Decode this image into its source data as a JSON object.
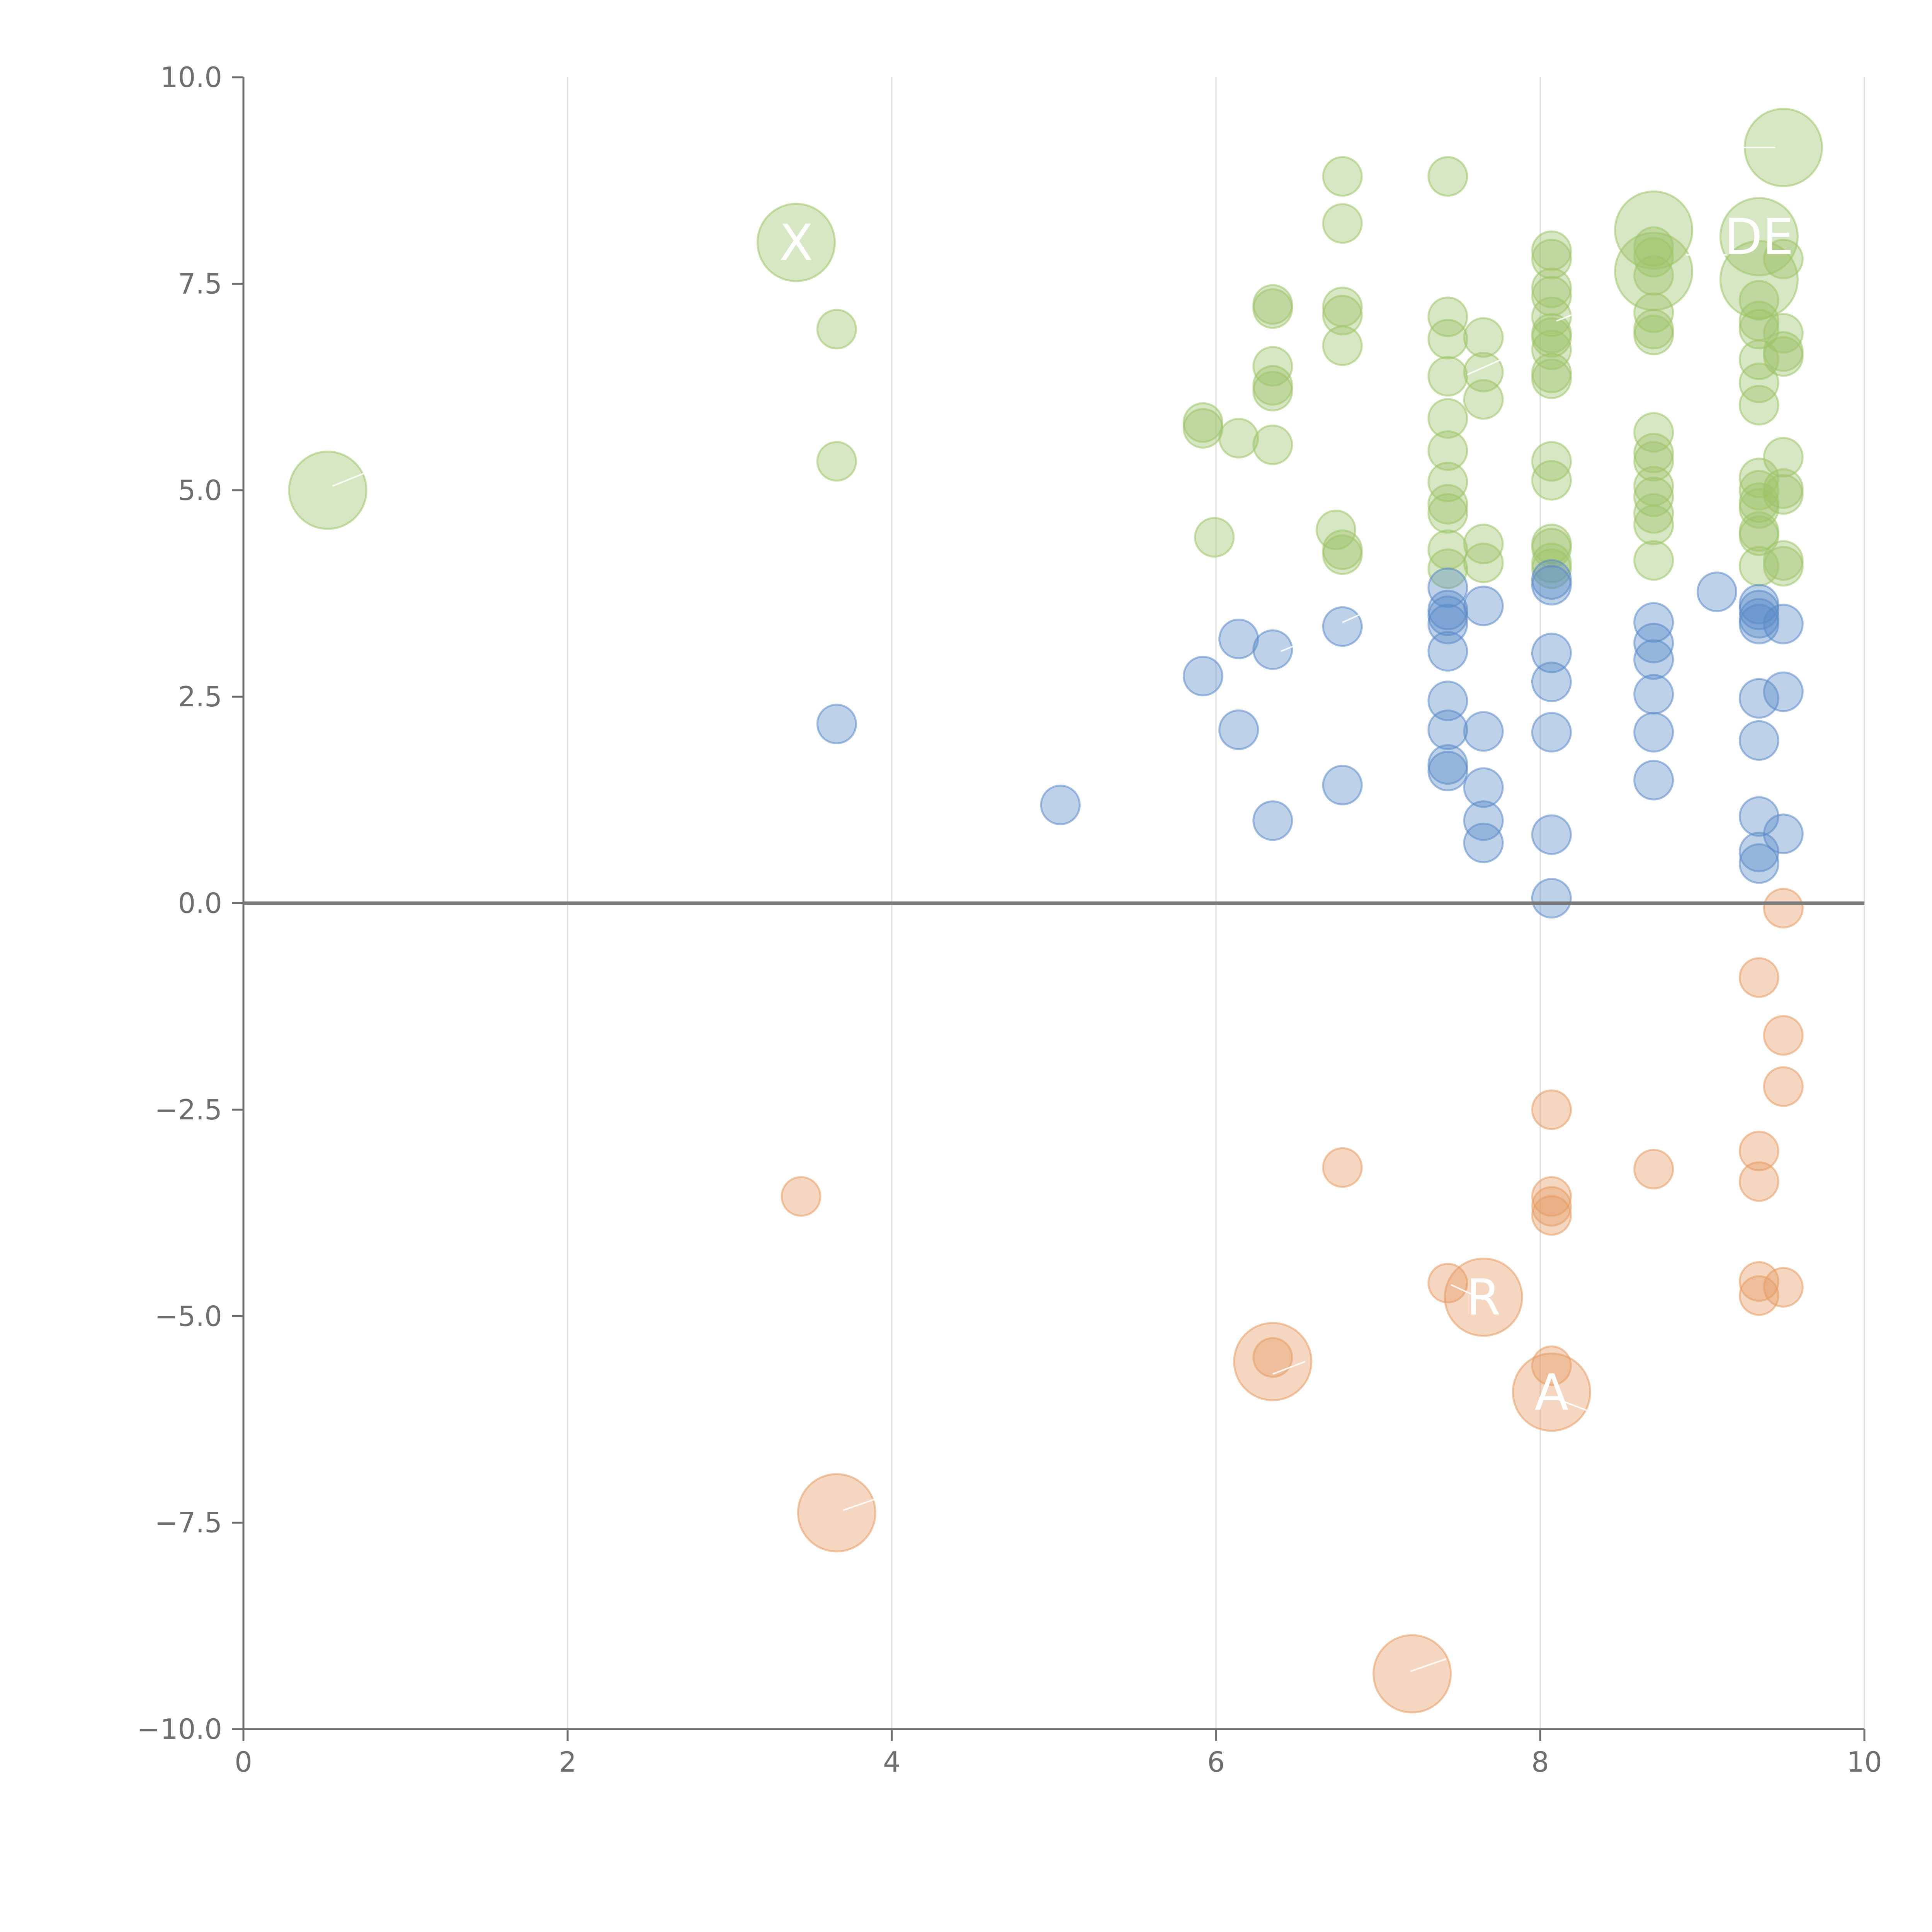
{
  "chart_data": {
    "type": "scatter",
    "title": "",
    "xlabel": "",
    "ylabel": "",
    "xlim": [
      0,
      10
    ],
    "ylim": [
      -10,
      10
    ],
    "grid": "vertical",
    "zero_line": true,
    "x_ticks": [
      {
        "value": 0,
        "label": "0"
      },
      {
        "value": 2,
        "label": "2"
      },
      {
        "value": 4,
        "label": "4"
      },
      {
        "value": 6,
        "label": "6"
      },
      {
        "value": 8,
        "label": "8"
      },
      {
        "value": 10,
        "label": "10"
      }
    ],
    "y_ticks": [
      {
        "value": 10,
        "label": "10.0"
      },
      {
        "value": 7.5,
        "label": "7.5"
      },
      {
        "value": 5,
        "label": "5.0"
      },
      {
        "value": 2.5,
        "label": "2.5"
      },
      {
        "value": 0,
        "label": "0.0"
      },
      {
        "value": -2.5,
        "label": "−2.5"
      },
      {
        "value": -5,
        "label": "−5.0"
      },
      {
        "value": -7.5,
        "label": "−7.5"
      },
      {
        "value": -10,
        "label": "−10.0"
      }
    ],
    "series": [
      {
        "name": "green",
        "color": "#9dc468",
        "points": [
          {
            "x": 0.52,
            "y": 5.0,
            "s": 3
          },
          {
            "x": 3.41,
            "y": 8.0,
            "s": 3
          },
          {
            "x": 3.66,
            "y": 6.95,
            "s": 1
          },
          {
            "x": 3.66,
            "y": 5.35,
            "s": 1
          },
          {
            "x": 5.92,
            "y": 5.82,
            "s": 1
          },
          {
            "x": 5.92,
            "y": 5.75,
            "s": 1
          },
          {
            "x": 5.99,
            "y": 4.43,
            "s": 1
          },
          {
            "x": 6.14,
            "y": 5.63,
            "s": 1
          },
          {
            "x": 6.35,
            "y": 7.2,
            "s": 1
          },
          {
            "x": 6.35,
            "y": 7.25,
            "s": 1
          },
          {
            "x": 6.35,
            "y": 6.5,
            "s": 1
          },
          {
            "x": 6.35,
            "y": 6.27,
            "s": 1
          },
          {
            "x": 6.35,
            "y": 6.2,
            "s": 1
          },
          {
            "x": 6.35,
            "y": 5.55,
            "s": 1
          },
          {
            "x": 6.78,
            "y": 8.8,
            "s": 1
          },
          {
            "x": 6.78,
            "y": 8.23,
            "s": 1
          },
          {
            "x": 6.78,
            "y": 7.22,
            "s": 1
          },
          {
            "x": 6.78,
            "y": 7.12,
            "s": 1
          },
          {
            "x": 6.78,
            "y": 6.75,
            "s": 1
          },
          {
            "x": 6.74,
            "y": 4.52,
            "s": 1
          },
          {
            "x": 6.78,
            "y": 4.28,
            "s": 1
          },
          {
            "x": 6.78,
            "y": 4.22,
            "s": 1
          },
          {
            "x": 7.43,
            "y": 8.8,
            "s": 1
          },
          {
            "x": 7.43,
            "y": 7.1,
            "s": 1
          },
          {
            "x": 7.43,
            "y": 6.83,
            "s": 1
          },
          {
            "x": 7.43,
            "y": 6.38,
            "s": 1
          },
          {
            "x": 7.43,
            "y": 5.87,
            "s": 1
          },
          {
            "x": 7.43,
            "y": 5.48,
            "s": 1
          },
          {
            "x": 7.43,
            "y": 5.1,
            "s": 1
          },
          {
            "x": 7.43,
            "y": 4.83,
            "s": 1
          },
          {
            "x": 7.43,
            "y": 4.72,
            "s": 1
          },
          {
            "x": 7.43,
            "y": 4.28,
            "s": 1
          },
          {
            "x": 7.43,
            "y": 4.05,
            "s": 1
          },
          {
            "x": 7.65,
            "y": 6.85,
            "s": 1
          },
          {
            "x": 7.65,
            "y": 6.43,
            "s": 1
          },
          {
            "x": 7.65,
            "y": 6.1,
            "s": 1
          },
          {
            "x": 7.65,
            "y": 4.35,
            "s": 1
          },
          {
            "x": 7.65,
            "y": 4.12,
            "s": 1
          },
          {
            "x": 8.07,
            "y": 7.9,
            "s": 1
          },
          {
            "x": 8.07,
            "y": 7.8,
            "s": 1
          },
          {
            "x": 8.07,
            "y": 7.45,
            "s": 1
          },
          {
            "x": 8.07,
            "y": 7.35,
            "s": 1
          },
          {
            "x": 8.07,
            "y": 7.1,
            "s": 1
          },
          {
            "x": 8.07,
            "y": 6.9,
            "s": 1
          },
          {
            "x": 8.07,
            "y": 6.85,
            "s": 1
          },
          {
            "x": 8.07,
            "y": 6.7,
            "s": 1
          },
          {
            "x": 8.07,
            "y": 6.42,
            "s": 1
          },
          {
            "x": 8.07,
            "y": 6.35,
            "s": 1
          },
          {
            "x": 8.07,
            "y": 5.35,
            "s": 1
          },
          {
            "x": 8.07,
            "y": 5.12,
            "s": 1
          },
          {
            "x": 8.07,
            "y": 4.35,
            "s": 1
          },
          {
            "x": 8.07,
            "y": 4.3,
            "s": 1
          },
          {
            "x": 8.07,
            "y": 4.12,
            "s": 1
          },
          {
            "x": 8.07,
            "y": 4.05,
            "s": 1
          },
          {
            "x": 8.7,
            "y": 8.15,
            "s": 3
          },
          {
            "x": 8.7,
            "y": 7.65,
            "s": 3
          },
          {
            "x": 8.7,
            "y": 7.95,
            "s": 1
          },
          {
            "x": 8.7,
            "y": 7.82,
            "s": 1
          },
          {
            "x": 8.7,
            "y": 7.6,
            "s": 1
          },
          {
            "x": 8.7,
            "y": 7.15,
            "s": 1
          },
          {
            "x": 8.7,
            "y": 6.95,
            "s": 1
          },
          {
            "x": 8.7,
            "y": 6.88,
            "s": 1
          },
          {
            "x": 8.7,
            "y": 5.7,
            "s": 1
          },
          {
            "x": 8.7,
            "y": 5.45,
            "s": 1
          },
          {
            "x": 8.7,
            "y": 5.35,
            "s": 1
          },
          {
            "x": 8.7,
            "y": 5.05,
            "s": 1
          },
          {
            "x": 8.7,
            "y": 4.92,
            "s": 1
          },
          {
            "x": 8.7,
            "y": 4.72,
            "s": 1
          },
          {
            "x": 8.7,
            "y": 4.58,
            "s": 1
          },
          {
            "x": 8.7,
            "y": 4.15,
            "s": 1
          },
          {
            "x": 9.35,
            "y": 8.07,
            "s": 3
          },
          {
            "x": 9.35,
            "y": 7.55,
            "s": 3
          },
          {
            "x": 9.35,
            "y": 7.3,
            "s": 1
          },
          {
            "x": 9.35,
            "y": 7.05,
            "s": 1
          },
          {
            "x": 9.35,
            "y": 6.95,
            "s": 1
          },
          {
            "x": 9.35,
            "y": 6.58,
            "s": 1
          },
          {
            "x": 9.35,
            "y": 6.3,
            "s": 1
          },
          {
            "x": 9.35,
            "y": 6.03,
            "s": 1
          },
          {
            "x": 9.35,
            "y": 5.15,
            "s": 1
          },
          {
            "x": 9.35,
            "y": 5.0,
            "s": 1
          },
          {
            "x": 9.35,
            "y": 4.85,
            "s": 1
          },
          {
            "x": 9.35,
            "y": 4.78,
            "s": 1
          },
          {
            "x": 9.35,
            "y": 4.5,
            "s": 1
          },
          {
            "x": 9.35,
            "y": 4.45,
            "s": 1
          },
          {
            "x": 9.35,
            "y": 4.08,
            "s": 1
          },
          {
            "x": 9.5,
            "y": 9.15,
            "s": 3
          },
          {
            "x": 9.5,
            "y": 7.8,
            "s": 1
          },
          {
            "x": 9.5,
            "y": 6.9,
            "s": 1
          },
          {
            "x": 9.5,
            "y": 6.68,
            "s": 1
          },
          {
            "x": 9.5,
            "y": 6.62,
            "s": 1
          },
          {
            "x": 9.5,
            "y": 5.4,
            "s": 1
          },
          {
            "x": 9.5,
            "y": 5.02,
            "s": 1
          },
          {
            "x": 9.5,
            "y": 4.95,
            "s": 1
          },
          {
            "x": 9.5,
            "y": 4.15,
            "s": 1
          },
          {
            "x": 9.5,
            "y": 4.08,
            "s": 1
          }
        ]
      },
      {
        "name": "blue",
        "color": "#5b8bc9",
        "points": [
          {
            "x": 3.66,
            "y": 2.17,
            "s": 1
          },
          {
            "x": 5.04,
            "y": 1.19,
            "s": 1
          },
          {
            "x": 5.92,
            "y": 2.75,
            "s": 1
          },
          {
            "x": 6.14,
            "y": 3.2,
            "s": 1
          },
          {
            "x": 6.14,
            "y": 2.1,
            "s": 1
          },
          {
            "x": 6.35,
            "y": 3.07,
            "s": 1
          },
          {
            "x": 6.35,
            "y": 1.0,
            "s": 1
          },
          {
            "x": 6.78,
            "y": 3.35,
            "s": 1
          },
          {
            "x": 6.78,
            "y": 1.43,
            "s": 1
          },
          {
            "x": 7.43,
            "y": 3.82,
            "s": 1
          },
          {
            "x": 7.43,
            "y": 3.55,
            "s": 1
          },
          {
            "x": 7.43,
            "y": 3.48,
            "s": 1
          },
          {
            "x": 7.43,
            "y": 3.38,
            "s": 1
          },
          {
            "x": 7.43,
            "y": 3.05,
            "s": 1
          },
          {
            "x": 7.43,
            "y": 2.45,
            "s": 1
          },
          {
            "x": 7.43,
            "y": 2.1,
            "s": 1
          },
          {
            "x": 7.43,
            "y": 1.68,
            "s": 1
          },
          {
            "x": 7.43,
            "y": 1.6,
            "s": 1
          },
          {
            "x": 7.65,
            "y": 3.6,
            "s": 1
          },
          {
            "x": 7.65,
            "y": 2.08,
            "s": 1
          },
          {
            "x": 7.65,
            "y": 1.4,
            "s": 1
          },
          {
            "x": 7.65,
            "y": 1.0,
            "s": 1
          },
          {
            "x": 7.65,
            "y": 0.73,
            "s": 1
          },
          {
            "x": 8.07,
            "y": 3.92,
            "s": 1
          },
          {
            "x": 8.07,
            "y": 3.85,
            "s": 1
          },
          {
            "x": 8.07,
            "y": 3.03,
            "s": 1
          },
          {
            "x": 8.07,
            "y": 2.68,
            "s": 1
          },
          {
            "x": 8.07,
            "y": 2.07,
            "s": 1
          },
          {
            "x": 8.07,
            "y": 0.83,
            "s": 1
          },
          {
            "x": 8.07,
            "y": 0.06,
            "s": 1
          },
          {
            "x": 8.7,
            "y": 3.4,
            "s": 1
          },
          {
            "x": 8.7,
            "y": 3.15,
            "s": 1
          },
          {
            "x": 8.7,
            "y": 2.95,
            "s": 1
          },
          {
            "x": 8.7,
            "y": 2.53,
            "s": 1
          },
          {
            "x": 8.7,
            "y": 2.07,
            "s": 1
          },
          {
            "x": 8.7,
            "y": 1.49,
            "s": 1
          },
          {
            "x": 9.09,
            "y": 3.77,
            "s": 1
          },
          {
            "x": 9.35,
            "y": 3.62,
            "s": 1
          },
          {
            "x": 9.35,
            "y": 3.55,
            "s": 1
          },
          {
            "x": 9.35,
            "y": 3.45,
            "s": 1
          },
          {
            "x": 9.35,
            "y": 3.38,
            "s": 1
          },
          {
            "x": 9.35,
            "y": 2.48,
            "s": 1
          },
          {
            "x": 9.35,
            "y": 1.97,
            "s": 1
          },
          {
            "x": 9.35,
            "y": 1.05,
            "s": 1
          },
          {
            "x": 9.35,
            "y": 0.62,
            "s": 1
          },
          {
            "x": 9.35,
            "y": 0.48,
            "s": 1
          },
          {
            "x": 9.5,
            "y": 3.38,
            "s": 1
          },
          {
            "x": 9.5,
            "y": 2.56,
            "s": 1
          },
          {
            "x": 9.5,
            "y": 0.84,
            "s": 1
          }
        ]
      },
      {
        "name": "orange",
        "color": "#e59c63",
        "points": [
          {
            "x": 3.44,
            "y": -3.55,
            "s": 1
          },
          {
            "x": 3.66,
            "y": -7.38,
            "s": 3
          },
          {
            "x": 6.35,
            "y": -5.55,
            "s": 3
          },
          {
            "x": 6.35,
            "y": -5.5,
            "s": 1
          },
          {
            "x": 6.78,
            "y": -3.2,
            "s": 1
          },
          {
            "x": 7.21,
            "y": -9.33,
            "s": 3
          },
          {
            "x": 7.43,
            "y": -4.6,
            "s": 1
          },
          {
            "x": 7.65,
            "y": -4.77,
            "s": 3
          },
          {
            "x": 8.07,
            "y": -5.92,
            "s": 3
          },
          {
            "x": 8.07,
            "y": -5.6,
            "s": 1
          },
          {
            "x": 8.07,
            "y": -2.5,
            "s": 1
          },
          {
            "x": 8.07,
            "y": -3.55,
            "s": 1
          },
          {
            "x": 8.07,
            "y": -3.67,
            "s": 1
          },
          {
            "x": 8.07,
            "y": -3.78,
            "s": 1
          },
          {
            "x": 8.7,
            "y": -3.22,
            "s": 1
          },
          {
            "x": 9.35,
            "y": -0.9,
            "s": 1
          },
          {
            "x": 9.35,
            "y": -3.0,
            "s": 1
          },
          {
            "x": 9.35,
            "y": -3.37,
            "s": 1
          },
          {
            "x": 9.35,
            "y": -4.58,
            "s": 1
          },
          {
            "x": 9.35,
            "y": -4.75,
            "s": 1
          },
          {
            "x": 9.5,
            "y": -0.06,
            "s": 1
          },
          {
            "x": 9.5,
            "y": -1.6,
            "s": 1
          },
          {
            "x": 9.5,
            "y": -2.22,
            "s": 1
          },
          {
            "x": 9.5,
            "y": -4.65,
            "s": 1
          }
        ]
      }
    ],
    "annotations": [
      {
        "text": "X",
        "x": 3.41,
        "y": 8.0
      },
      {
        "text": "DE",
        "x": 9.35,
        "y": 8.07
      },
      {
        "text": "R",
        "x": 7.65,
        "y": -4.77
      },
      {
        "text": "A",
        "x": 8.07,
        "y": -5.92
      }
    ],
    "connector_lines": [
      {
        "x1": 0.55,
        "y1": 5.05,
        "x2": 0.8,
        "y2": 5.25
      },
      {
        "x1": 6.4,
        "y1": 3.05,
        "x2": 6.65,
        "y2": 3.25
      },
      {
        "x1": 6.78,
        "y1": 3.4,
        "x2": 6.95,
        "y2": 3.55
      },
      {
        "x1": 7.55,
        "y1": 6.4,
        "x2": 7.78,
        "y2": 6.6
      },
      {
        "x1": 8.1,
        "y1": 7.05,
        "x2": 8.3,
        "y2": 7.2
      },
      {
        "x1": 9.2,
        "y1": 9.15,
        "x2": 9.45,
        "y2": 9.15
      },
      {
        "x1": 8.9,
        "y1": 7.85,
        "x2": 9.15,
        "y2": 7.85
      },
      {
        "x1": 6.35,
        "y1": -5.7,
        "x2": 6.55,
        "y2": -5.55
      },
      {
        "x1": 3.7,
        "y1": -7.35,
        "x2": 3.92,
        "y2": -7.2
      },
      {
        "x1": 7.2,
        "y1": -9.3,
        "x2": 7.42,
        "y2": -9.15
      },
      {
        "x1": 7.65,
        "y1": -4.8,
        "x2": 7.45,
        "y2": -4.62
      },
      {
        "x1": 8.1,
        "y1": -6.0,
        "x2": 8.3,
        "y2": -6.15
      }
    ]
  }
}
